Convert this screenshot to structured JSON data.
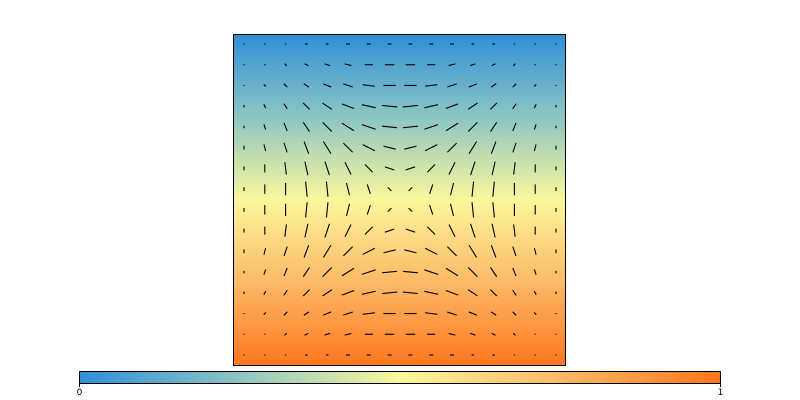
{
  "chart_data": {
    "type": "quiver",
    "colormap": [
      "#2f8fd8",
      "#8cc6c2",
      "#fbf79c",
      "#fcb966",
      "#ff761f"
    ],
    "colorbar_ticks": [
      0,
      1
    ],
    "u": [
      [
        0,
        0,
        0,
        0.1,
        0.1,
        0.2,
        0.2,
        0.2,
        0.2,
        0.2,
        0.2,
        0.1,
        0.1,
        0,
        0,
        0
      ],
      [
        0,
        0,
        0.1,
        0.2,
        0.3,
        0.4,
        0.5,
        0.6,
        0.6,
        0.5,
        0.4,
        0.3,
        0.2,
        0.1,
        0,
        0
      ],
      [
        0,
        0.1,
        0.2,
        0.3,
        0.5,
        0.6,
        0.8,
        0.8,
        0.8,
        0.8,
        0.6,
        0.5,
        0.3,
        0.2,
        0.1,
        0
      ],
      [
        0,
        0.1,
        0.2,
        0.4,
        0.6,
        0.8,
        0.9,
        1,
        1,
        0.9,
        0.8,
        0.6,
        0.4,
        0.2,
        0.1,
        0
      ],
      [
        0,
        0.1,
        0.2,
        0.4,
        0.6,
        0.8,
        0.9,
        1,
        1,
        0.9,
        0.8,
        0.6,
        0.4,
        0.2,
        0.1,
        0
      ],
      [
        0,
        0.1,
        0.2,
        0.3,
        0.5,
        0.6,
        0.8,
        0.8,
        0.8,
        0.8,
        0.6,
        0.5,
        0.3,
        0.2,
        0.1,
        0
      ],
      [
        0,
        0,
        0.1,
        0.2,
        0.3,
        0.4,
        0.5,
        0.6,
        0.6,
        0.5,
        0.4,
        0.3,
        0.2,
        0.1,
        0,
        0
      ],
      [
        0,
        0,
        0,
        0.1,
        0.1,
        0.2,
        0.2,
        0.2,
        0.2,
        0.2,
        0.2,
        0.1,
        0.1,
        0,
        0,
        0
      ],
      [
        0,
        0,
        0,
        -0.1,
        -0.1,
        -0.2,
        -0.2,
        -0.2,
        -0.2,
        -0.2,
        -0.2,
        -0.1,
        -0.1,
        0,
        0,
        0
      ],
      [
        0,
        0,
        -0.1,
        -0.2,
        -0.3,
        -0.4,
        -0.5,
        -0.6,
        -0.6,
        -0.5,
        -0.4,
        -0.3,
        -0.2,
        -0.1,
        0,
        0
      ],
      [
        0,
        -0.1,
        -0.2,
        -0.3,
        -0.5,
        -0.6,
        -0.8,
        -0.8,
        -0.8,
        -0.8,
        -0.6,
        -0.5,
        -0.3,
        -0.2,
        -0.1,
        0
      ],
      [
        0,
        -0.1,
        -0.2,
        -0.4,
        -0.6,
        -0.8,
        -0.9,
        -1,
        -1,
        -0.9,
        -0.8,
        -0.6,
        -0.4,
        -0.2,
        -0.1,
        0
      ],
      [
        0,
        -0.1,
        -0.2,
        -0.4,
        -0.6,
        -0.8,
        -0.9,
        -1,
        -1,
        -0.9,
        -0.8,
        -0.6,
        -0.4,
        -0.2,
        -0.1,
        0
      ],
      [
        0,
        -0.1,
        -0.2,
        -0.3,
        -0.5,
        -0.6,
        -0.8,
        -0.8,
        -0.8,
        -0.8,
        -0.6,
        -0.5,
        -0.3,
        -0.2,
        -0.1,
        0
      ],
      [
        0,
        0,
        -0.1,
        -0.2,
        -0.3,
        -0.4,
        -0.5,
        -0.6,
        -0.6,
        -0.5,
        -0.4,
        -0.3,
        -0.2,
        -0.1,
        0,
        0
      ],
      [
        0,
        0,
        0,
        -0.1,
        -0.1,
        -0.2,
        -0.2,
        -0.2,
        -0.2,
        -0.2,
        -0.2,
        -0.1,
        -0.1,
        0,
        0,
        0
      ]
    ],
    "v": [
      [
        0,
        0,
        0,
        0,
        0,
        0,
        0,
        0,
        0,
        0,
        0,
        0,
        0,
        0,
        0,
        0
      ],
      [
        0,
        0,
        -0.1,
        -0.1,
        -0.1,
        -0.1,
        0,
        0,
        0,
        0,
        0.1,
        0.1,
        0.1,
        0.1,
        0,
        0
      ],
      [
        0,
        -0.1,
        -0.2,
        -0.2,
        -0.2,
        -0.2,
        -0.1,
        0,
        0,
        0.1,
        0.2,
        0.2,
        0.2,
        0.2,
        0.1,
        0
      ],
      [
        -0.1,
        -0.2,
        -0.3,
        -0.4,
        -0.4,
        -0.3,
        -0.2,
        -0.1,
        0.1,
        0.2,
        0.3,
        0.4,
        0.4,
        0.3,
        0.2,
        0.1
      ],
      [
        -0.1,
        -0.3,
        -0.5,
        -0.6,
        -0.6,
        -0.5,
        -0.3,
        -0.1,
        0.1,
        0.3,
        0.5,
        0.6,
        0.6,
        0.5,
        0.3,
        0.1
      ],
      [
        -0.2,
        -0.4,
        -0.6,
        -0.8,
        -0.8,
        -0.6,
        -0.4,
        -0.2,
        0.2,
        0.4,
        0.6,
        0.8,
        0.8,
        0.6,
        0.4,
        0.2
      ],
      [
        -0.2,
        -0.5,
        -0.8,
        -0.9,
        -0.9,
        -0.8,
        -0.5,
        -0.2,
        0.2,
        0.5,
        0.8,
        0.9,
        0.9,
        0.8,
        0.5,
        0.2
      ],
      [
        -0.2,
        -0.6,
        -0.8,
        -1,
        -1,
        -0.8,
        -0.6,
        -0.2,
        0.2,
        0.6,
        0.8,
        1,
        1,
        0.8,
        0.6,
        0.2
      ],
      [
        -0.2,
        -0.6,
        -0.8,
        -1,
        -1,
        -0.8,
        -0.6,
        -0.2,
        0.2,
        0.6,
        0.8,
        1,
        1,
        0.8,
        0.6,
        0.2
      ],
      [
        -0.2,
        -0.5,
        -0.8,
        -0.9,
        -0.9,
        -0.8,
        -0.5,
        -0.2,
        0.2,
        0.5,
        0.8,
        0.9,
        0.9,
        0.8,
        0.5,
        0.2
      ],
      [
        -0.2,
        -0.4,
        -0.6,
        -0.8,
        -0.8,
        -0.6,
        -0.4,
        -0.2,
        0.2,
        0.4,
        0.6,
        0.8,
        0.8,
        0.6,
        0.4,
        0.2
      ],
      [
        -0.1,
        -0.3,
        -0.5,
        -0.6,
        -0.6,
        -0.5,
        -0.3,
        -0.1,
        0.1,
        0.3,
        0.5,
        0.6,
        0.6,
        0.5,
        0.3,
        0.1
      ],
      [
        -0.1,
        -0.2,
        -0.3,
        -0.4,
        -0.4,
        -0.3,
        -0.2,
        -0.1,
        0.1,
        0.2,
        0.3,
        0.4,
        0.4,
        0.3,
        0.2,
        0.1
      ],
      [
        0,
        -0.1,
        -0.2,
        -0.2,
        -0.2,
        -0.2,
        -0.1,
        0,
        0,
        0.1,
        0.2,
        0.2,
        0.2,
        0.2,
        0.1,
        0
      ],
      [
        0,
        0,
        -0.1,
        -0.1,
        -0.1,
        -0.1,
        0,
        0,
        0,
        0,
        0.1,
        0.1,
        0.1,
        0.1,
        0,
        0
      ],
      [
        0,
        0,
        0,
        0,
        0,
        0,
        0,
        0,
        0,
        0,
        0,
        0,
        0,
        0,
        0,
        0
      ]
    ]
  }
}
